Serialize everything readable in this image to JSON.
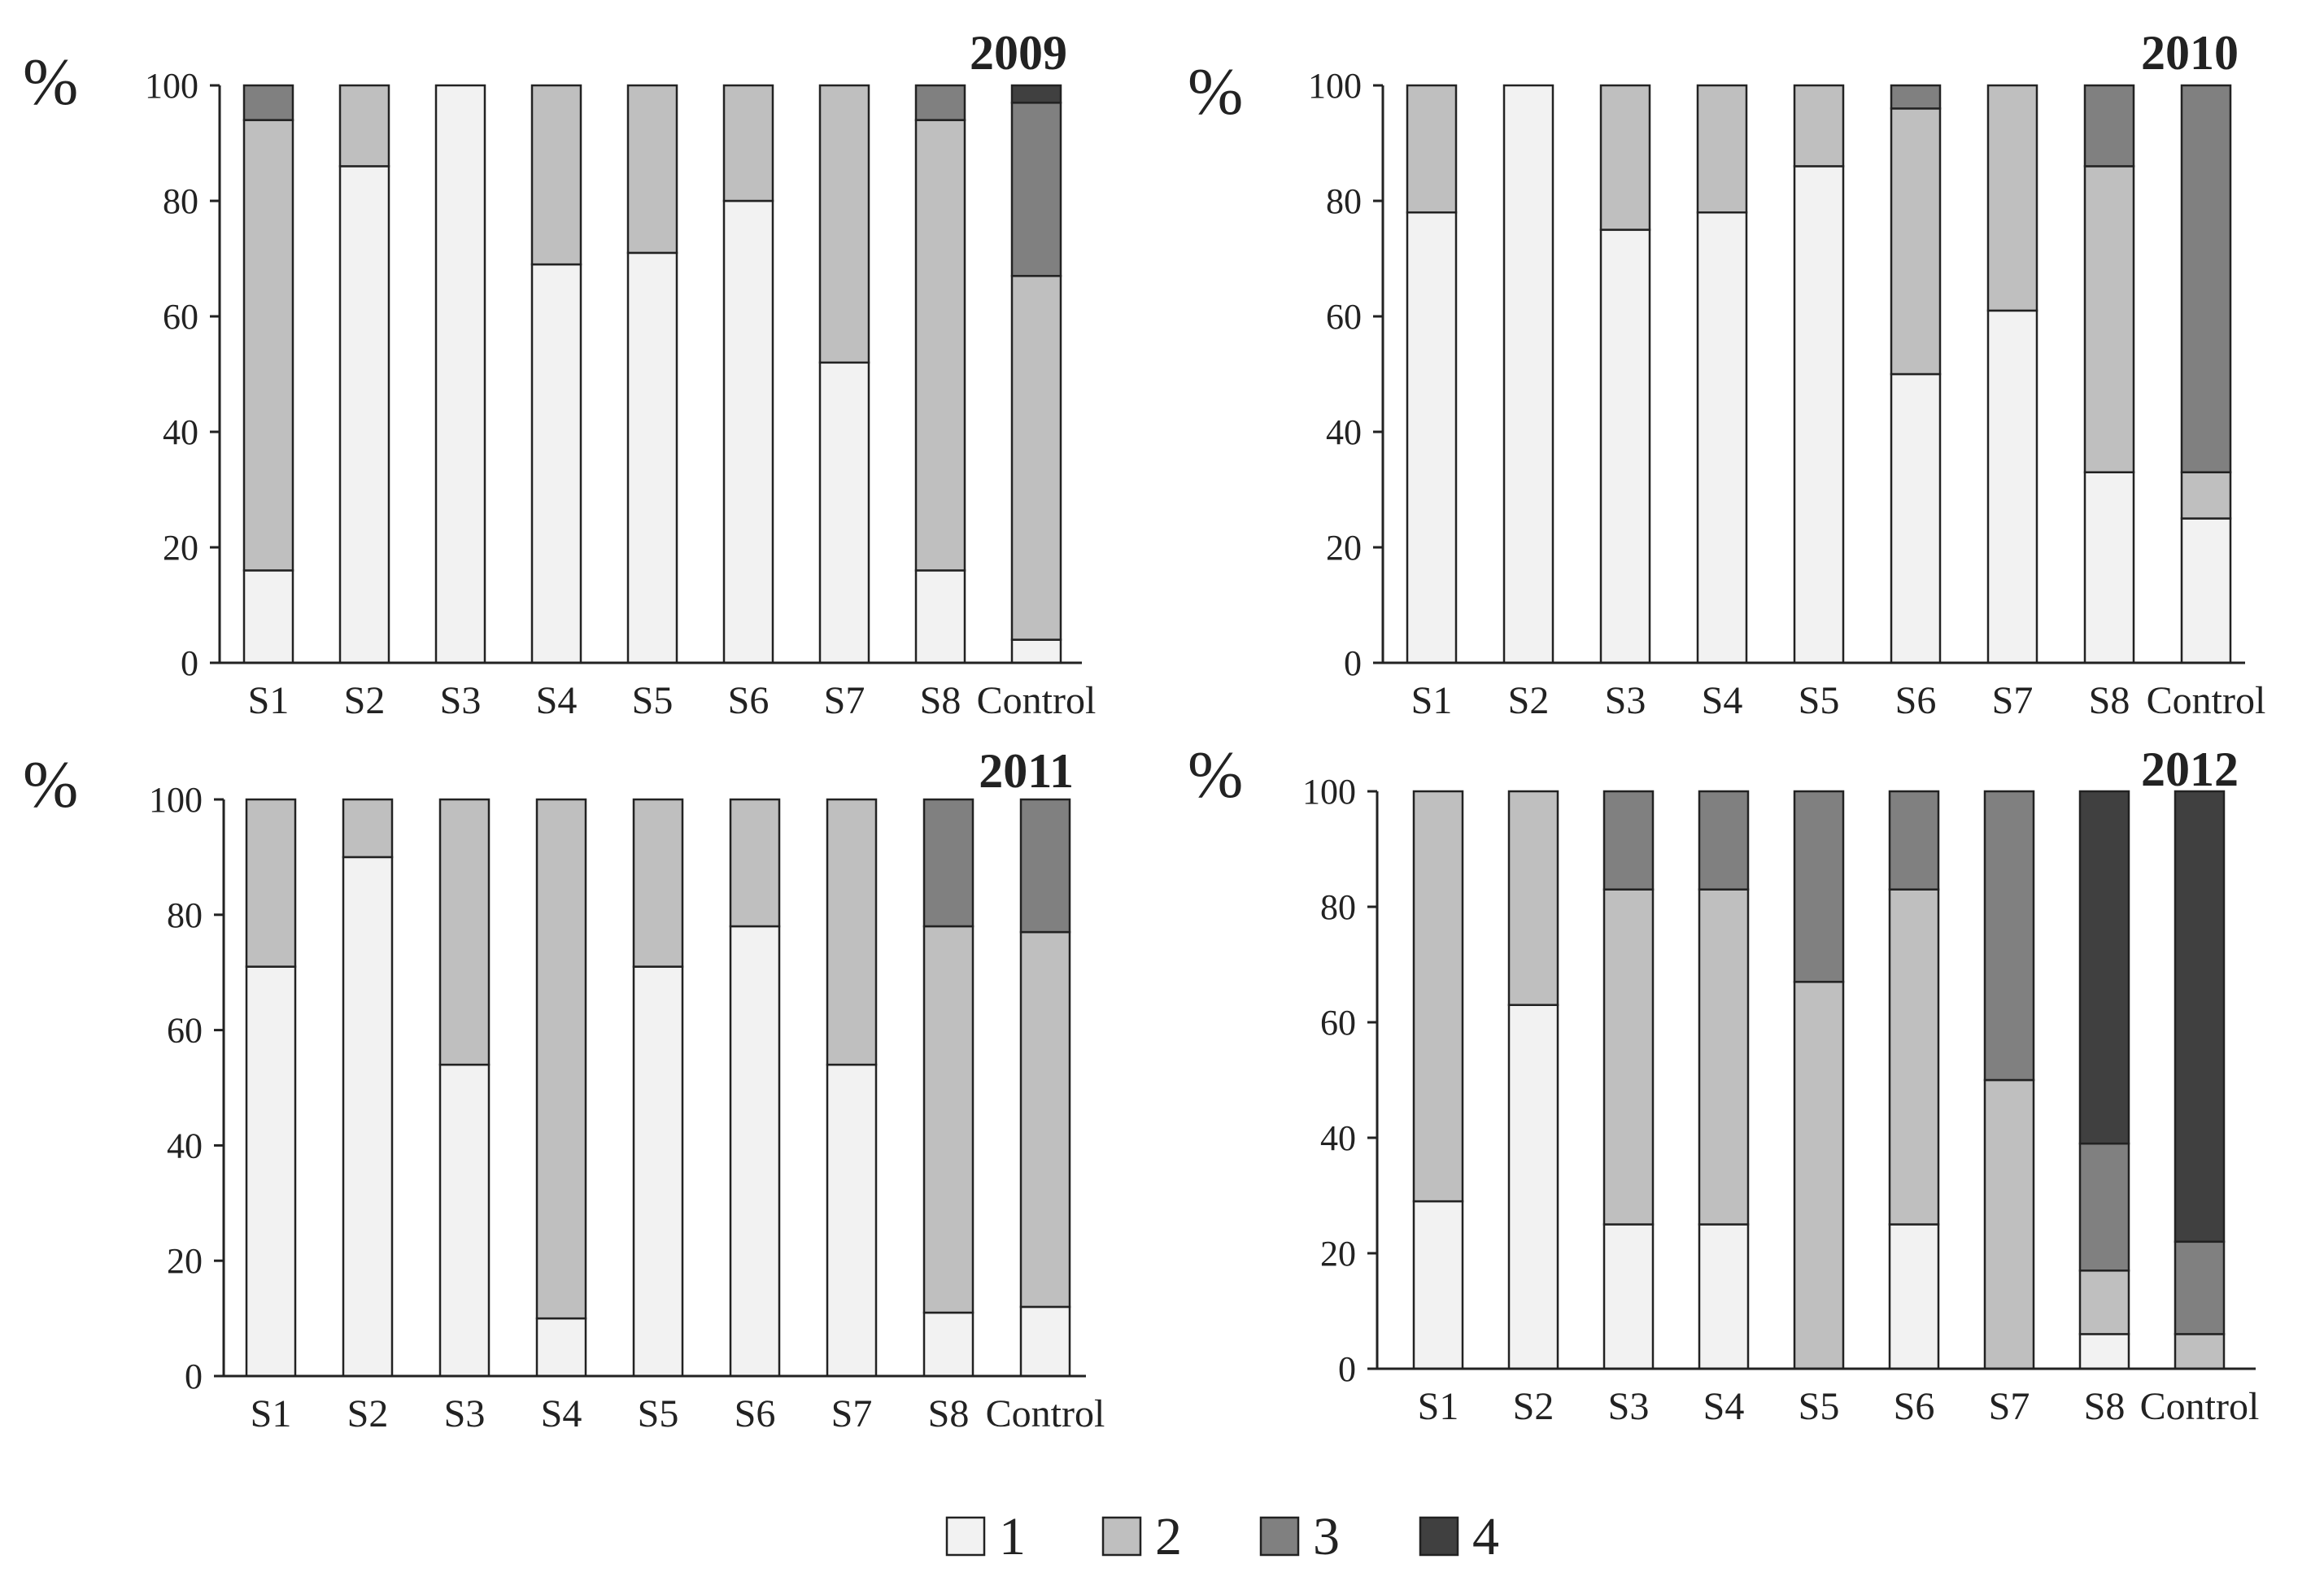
{
  "chart_data": [
    {
      "type": "bar",
      "stacked": true,
      "title": "2009",
      "ylabel": "%",
      "ylim": [
        0,
        100
      ],
      "yticks": [
        0,
        20,
        40,
        60,
        80,
        100
      ],
      "categories": [
        "S1",
        "S2",
        "S3",
        "S4",
        "S5",
        "S6",
        "S7",
        "S8",
        "Control"
      ],
      "series": [
        {
          "name": "1",
          "values": [
            16,
            86,
            100,
            69,
            71,
            80,
            52,
            16,
            4
          ]
        },
        {
          "name": "2",
          "values": [
            78,
            14,
            0,
            31,
            29,
            20,
            48,
            78,
            63
          ]
        },
        {
          "name": "3",
          "values": [
            6,
            0,
            0,
            0,
            0,
            0,
            0,
            6,
            30
          ]
        },
        {
          "name": "4",
          "values": [
            0,
            0,
            0,
            0,
            0,
            0,
            0,
            0,
            3
          ]
        }
      ]
    },
    {
      "type": "bar",
      "stacked": true,
      "title": "2010",
      "ylabel": "%",
      "ylim": [
        0,
        100
      ],
      "yticks": [
        0,
        20,
        40,
        60,
        80,
        100
      ],
      "categories": [
        "S1",
        "S2",
        "S3",
        "S4",
        "S5",
        "S6",
        "S7",
        "S8",
        "Control"
      ],
      "series": [
        {
          "name": "1",
          "values": [
            78,
            100,
            75,
            78,
            86,
            50,
            61,
            33,
            25
          ]
        },
        {
          "name": "2",
          "values": [
            22,
            0,
            25,
            22,
            14,
            46,
            39,
            53,
            8
          ]
        },
        {
          "name": "3",
          "values": [
            0,
            0,
            0,
            0,
            0,
            4,
            0,
            14,
            67
          ]
        },
        {
          "name": "4",
          "values": [
            0,
            0,
            0,
            0,
            0,
            0,
            0,
            0,
            0
          ]
        }
      ]
    },
    {
      "type": "bar",
      "stacked": true,
      "title": "2011",
      "ylabel": "%",
      "ylim": [
        0,
        100
      ],
      "yticks": [
        0,
        20,
        40,
        60,
        80,
        100
      ],
      "categories": [
        "S1",
        "S2",
        "S3",
        "S4",
        "S5",
        "S6",
        "S7",
        "S8",
        "Control"
      ],
      "series": [
        {
          "name": "1",
          "values": [
            71,
            90,
            54,
            10,
            71,
            78,
            54,
            11,
            12
          ]
        },
        {
          "name": "2",
          "values": [
            29,
            10,
            46,
            90,
            29,
            22,
            46,
            67,
            65
          ]
        },
        {
          "name": "3",
          "values": [
            0,
            0,
            0,
            0,
            0,
            0,
            0,
            22,
            23
          ]
        },
        {
          "name": "4",
          "values": [
            0,
            0,
            0,
            0,
            0,
            0,
            0,
            0,
            0
          ]
        }
      ]
    },
    {
      "type": "bar",
      "stacked": true,
      "title": "2012",
      "ylabel": "%",
      "ylim": [
        0,
        100
      ],
      "yticks": [
        0,
        20,
        40,
        60,
        80,
        100
      ],
      "categories": [
        "S1",
        "S2",
        "S3",
        "S4",
        "S5",
        "S6",
        "S7",
        "S8",
        "Control"
      ],
      "series": [
        {
          "name": "1",
          "values": [
            29,
            63,
            25,
            25,
            0,
            25,
            0,
            6,
            0
          ]
        },
        {
          "name": "2",
          "values": [
            71,
            37,
            58,
            58,
            67,
            58,
            50,
            11,
            6
          ]
        },
        {
          "name": "3",
          "values": [
            0,
            0,
            17,
            17,
            33,
            17,
            50,
            22,
            16
          ]
        },
        {
          "name": "4",
          "values": [
            0,
            0,
            0,
            0,
            0,
            0,
            0,
            61,
            78
          ]
        }
      ]
    }
  ],
  "legend": {
    "items": [
      {
        "label": "1",
        "color": "#f2f2f2"
      },
      {
        "label": "2",
        "color": "#bfbfbf"
      },
      {
        "label": "3",
        "color": "#808080"
      },
      {
        "label": "4",
        "color": "#404040"
      }
    ]
  }
}
